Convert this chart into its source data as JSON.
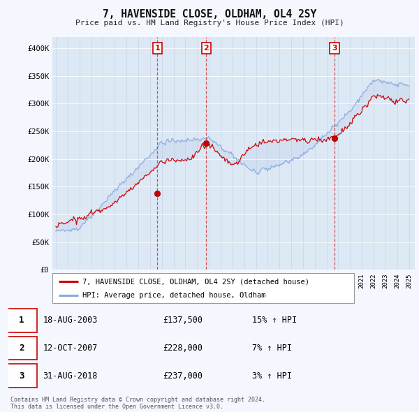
{
  "title": "7, HAVENSIDE CLOSE, OLDHAM, OL4 2SY",
  "subtitle": "Price paid vs. HM Land Registry's House Price Index (HPI)",
  "ylim": [
    0,
    420000
  ],
  "yticks": [
    0,
    50000,
    100000,
    150000,
    200000,
    250000,
    300000,
    350000,
    400000
  ],
  "ytick_labels": [
    "£0",
    "£50K",
    "£100K",
    "£150K",
    "£200K",
    "£250K",
    "£300K",
    "£350K",
    "£400K"
  ],
  "fig_bg": "#f5f7ff",
  "plot_bg": "#dde8f5",
  "line_color_property": "#cc0000",
  "line_color_hpi": "#88aadd",
  "fill_color": "#c8d8ee",
  "purchases": [
    {
      "date": 2003.63,
      "price": 137500,
      "label": "1"
    },
    {
      "date": 2007.78,
      "price": 228000,
      "label": "2"
    },
    {
      "date": 2018.67,
      "price": 237000,
      "label": "3"
    }
  ],
  "vline_dates": [
    2003.63,
    2007.78,
    2018.67
  ],
  "legend_property": "7, HAVENSIDE CLOSE, OLDHAM, OL4 2SY (detached house)",
  "legend_hpi": "HPI: Average price, detached house, Oldham",
  "table_rows": [
    {
      "num": "1",
      "date": "18-AUG-2003",
      "price": "£137,500",
      "hpi": "15% ↑ HPI"
    },
    {
      "num": "2",
      "date": "12-OCT-2007",
      "price": "£228,000",
      "hpi": "7% ↑ HPI"
    },
    {
      "num": "3",
      "date": "31-AUG-2018",
      "price": "£237,000",
      "hpi": "3% ↑ HPI"
    }
  ],
  "footer": "Contains HM Land Registry data © Crown copyright and database right 2024.\nThis data is licensed under the Open Government Licence v3.0."
}
